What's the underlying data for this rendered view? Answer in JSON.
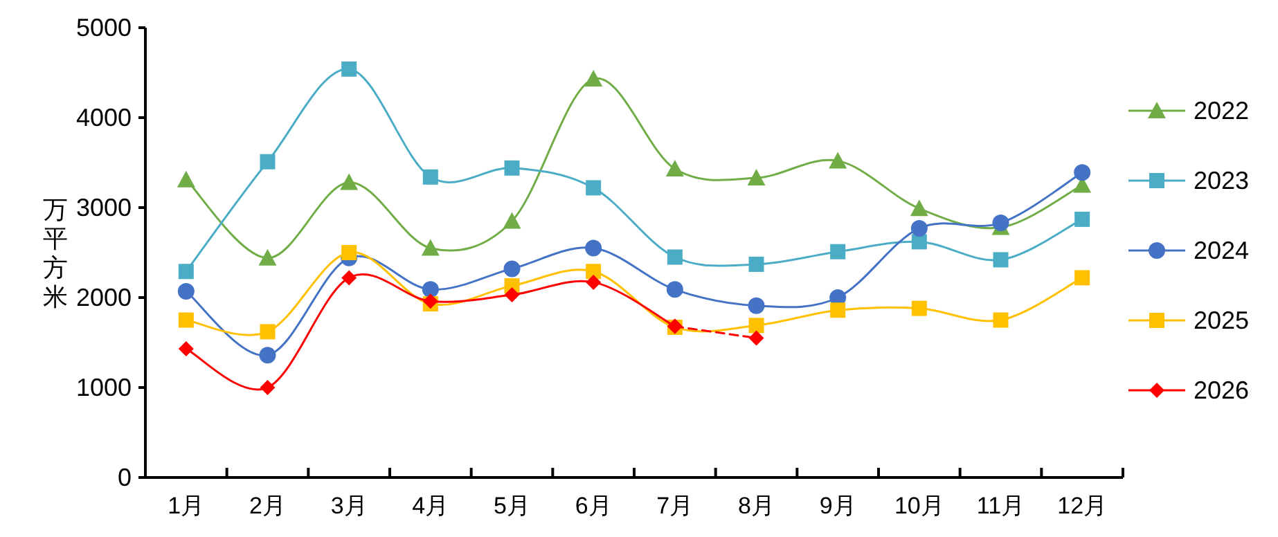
{
  "chart_data": {
    "type": "line",
    "ylabel": "万平方米",
    "categories": [
      "1月",
      "2月",
      "3月",
      "4月",
      "5月",
      "6月",
      "7月",
      "8月",
      "9月",
      "10月",
      "11月",
      "12月"
    ],
    "ylim": [
      0,
      5000
    ],
    "yticks": [
      0,
      1000,
      2000,
      3000,
      4000,
      5000
    ],
    "grid": false,
    "legend": "right",
    "series": [
      {
        "name": "2022",
        "color": "#70ad47",
        "marker": "triangle",
        "line_style": "solid",
        "values": [
          3310,
          2440,
          3280,
          2550,
          2850,
          4430,
          3430,
          3330,
          3520,
          2990,
          2780,
          3250
        ]
      },
      {
        "name": "2023",
        "color": "#4bacc6",
        "marker": "square",
        "line_style": "solid",
        "values": [
          2290,
          3510,
          4540,
          3340,
          3440,
          3220,
          2450,
          2370,
          2510,
          2620,
          2420,
          2870
        ]
      },
      {
        "name": "2024",
        "color": "#4472c4",
        "marker": "circle",
        "line_style": "solid",
        "values": [
          2070,
          1360,
          2440,
          2090,
          2320,
          2550,
          2090,
          1910,
          2000,
          2770,
          2830,
          3390
        ]
      },
      {
        "name": "2025",
        "color": "#ffc000",
        "marker": "square",
        "line_style": "solid",
        "values": [
          1750,
          1620,
          2500,
          1930,
          2130,
          2290,
          1670,
          1690,
          1860,
          1880,
          1750,
          2220
        ]
      },
      {
        "name": "2026",
        "color": "#ff0000",
        "marker": "diamond",
        "line_style": "solid",
        "values": [
          1430,
          1000,
          2220,
          1960,
          2030,
          2170,
          1680,
          null,
          null,
          null,
          null,
          null
        ]
      },
      {
        "color": "#ff0000",
        "marker": "diamond",
        "line_style": "dashed",
        "values": [
          null,
          null,
          null,
          null,
          null,
          null,
          1680,
          1550,
          null,
          null,
          null,
          null
        ]
      }
    ]
  }
}
